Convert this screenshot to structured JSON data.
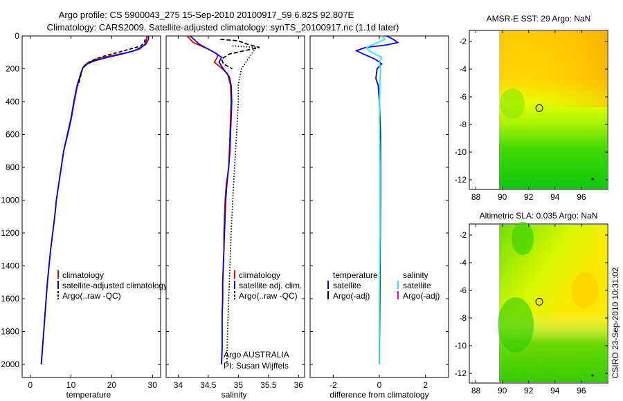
{
  "header": {
    "title_line1": "Argo profile: CS 5900043_275 15-Sep-2010 20100917_59 6.82S 92.807E",
    "title_line2": "Climatology: CARS2009. Satellite-adjusted climatology: synTS_20100917.nc (1.1d later)"
  },
  "side_stamp": "CSIRO 23-Sep-2010 10:31:02",
  "colors": {
    "climatology": "#e00000",
    "satellite": "#0000e0",
    "argo": "#000000",
    "sat_salinity": "#30e8f0",
    "argo_adj_salinity": "#e000e0",
    "map_yellow": "#ffff00",
    "map_green": "#00cc00",
    "map_orange": "#ffa000"
  },
  "chart_data": [
    {
      "id": "temperature",
      "type": "line",
      "xlabel": "temperature",
      "ylabel": "",
      "xlim": [
        -2,
        32
      ],
      "ylim": [
        2080,
        0
      ],
      "xticks": [
        0,
        10,
        20,
        30
      ],
      "yticks": [
        0,
        200,
        400,
        600,
        800,
        1000,
        1200,
        1400,
        1600,
        1800,
        2000
      ],
      "series": [
        {
          "name": "climatology",
          "color_key": "climatology",
          "dash": "",
          "points": [
            [
              28.6,
              0
            ],
            [
              28.6,
              10
            ],
            [
              28.5,
              20
            ],
            [
              28.4,
              40
            ],
            [
              27.8,
              60
            ],
            [
              26.8,
              80
            ],
            [
              24,
              100
            ],
            [
              20,
              120
            ],
            [
              16.5,
              140
            ],
            [
              14.3,
              160
            ],
            [
              13.3,
              180
            ],
            [
              12.8,
              200
            ],
            [
              12.2,
              250
            ],
            [
              11.6,
              300
            ],
            [
              10.8,
              400
            ],
            [
              10.1,
              500
            ],
            [
              9.2,
              600
            ],
            [
              8.2,
              700
            ],
            [
              7.6,
              800
            ],
            [
              7.0,
              900
            ],
            [
              6.4,
              1000
            ],
            [
              6.0,
              1100
            ],
            [
              5.5,
              1200
            ],
            [
              5.0,
              1300
            ],
            [
              4.6,
              1400
            ],
            [
              4.2,
              1500
            ],
            [
              3.9,
              1600
            ],
            [
              3.6,
              1700
            ],
            [
              3.3,
              1800
            ],
            [
              3.0,
              1900
            ],
            [
              2.7,
              2000
            ]
          ]
        },
        {
          "name": "satellite-adjusted climatology",
          "color_key": "satellite",
          "dash": "",
          "points": [
            [
              29.0,
              0
            ],
            [
              29.0,
              20
            ],
            [
              28.4,
              50
            ],
            [
              27.2,
              70
            ],
            [
              25.5,
              90
            ],
            [
              22.5,
              110
            ],
            [
              19,
              130
            ],
            [
              16,
              150
            ],
            [
              14,
              170
            ],
            [
              13,
              190
            ],
            [
              12.5,
              220
            ],
            [
              12,
              260
            ],
            [
              11.5,
              300
            ],
            [
              10.7,
              400
            ],
            [
              10.0,
              500
            ],
            [
              9.1,
              600
            ],
            [
              8.2,
              700
            ],
            [
              7.6,
              800
            ],
            [
              7.0,
              900
            ],
            [
              6.4,
              1000
            ],
            [
              6.0,
              1100
            ],
            [
              5.5,
              1200
            ],
            [
              5.0,
              1300
            ],
            [
              4.6,
              1400
            ],
            [
              4.2,
              1500
            ],
            [
              3.9,
              1600
            ],
            [
              3.6,
              1700
            ],
            [
              3.3,
              1800
            ],
            [
              3.0,
              1900
            ],
            [
              2.7,
              2000
            ]
          ]
        },
        {
          "name": "Argo(..raw -QC)",
          "color_key": "argo",
          "dash": "5,3",
          "points": [
            [
              28.2,
              20
            ],
            [
              28.0,
              40
            ],
            [
              27.2,
              60
            ],
            [
              24.5,
              80
            ],
            [
              21.5,
              100
            ],
            [
              18.5,
              120
            ],
            [
              16,
              140
            ],
            [
              14.5,
              160
            ],
            [
              13.5,
              180
            ],
            [
              12.8,
              200
            ],
            [
              12.3,
              250
            ],
            [
              11.8,
              300
            ]
          ]
        }
      ],
      "legend": [
        "climatology",
        "satellite-adjusted climatology",
        "Argo(..raw -QC)"
      ]
    },
    {
      "id": "salinity",
      "type": "line",
      "xlabel": "salinity",
      "xlim": [
        33.8,
        36.1
      ],
      "ylim": [
        2080,
        0
      ],
      "xticks": [
        34,
        34.5,
        35,
        35.5,
        36
      ],
      "series": [
        {
          "name": "climatology",
          "color_key": "climatology",
          "dash": "",
          "points": [
            [
              34.15,
              0
            ],
            [
              34.25,
              40
            ],
            [
              34.5,
              80
            ],
            [
              34.65,
              110
            ],
            [
              34.65,
              130
            ],
            [
              34.6,
              160
            ],
            [
              34.7,
              190
            ],
            [
              34.82,
              230
            ],
            [
              34.87,
              300
            ],
            [
              34.88,
              400
            ],
            [
              34.87,
              500
            ],
            [
              34.86,
              600
            ],
            [
              34.85,
              700
            ],
            [
              34.84,
              800
            ],
            [
              34.8,
              900
            ],
            [
              34.78,
              1000
            ],
            [
              34.77,
              1100
            ],
            [
              34.76,
              1200
            ],
            [
              34.76,
              1300
            ],
            [
              34.75,
              1400
            ],
            [
              34.74,
              1500
            ],
            [
              34.74,
              1600
            ],
            [
              34.73,
              1700
            ],
            [
              34.73,
              1800
            ],
            [
              34.73,
              1900
            ],
            [
              34.72,
              2000
            ]
          ]
        },
        {
          "name": "satellite adj. clim.",
          "color_key": "satellite",
          "dash": "",
          "points": [
            [
              34.2,
              0
            ],
            [
              34.35,
              50
            ],
            [
              34.6,
              100
            ],
            [
              34.72,
              130
            ],
            [
              34.68,
              160
            ],
            [
              34.75,
              200
            ],
            [
              34.85,
              250
            ],
            [
              34.88,
              300
            ],
            [
              34.89,
              400
            ],
            [
              34.88,
              500
            ],
            [
              34.87,
              600
            ],
            [
              34.86,
              700
            ],
            [
              34.84,
              800
            ],
            [
              34.81,
              900
            ],
            [
              34.79,
              1000
            ],
            [
              34.78,
              1100
            ],
            [
              34.77,
              1200
            ],
            [
              34.76,
              1300
            ],
            [
              34.75,
              1400
            ],
            [
              34.74,
              1500
            ],
            [
              34.74,
              1600
            ],
            [
              34.73,
              1700
            ],
            [
              34.73,
              1800
            ],
            [
              34.73,
              1900
            ],
            [
              34.72,
              2000
            ]
          ]
        },
        {
          "name": "Argo raw",
          "color_key": "argo",
          "dash": "6,3",
          "points": [
            [
              34.7,
              20
            ],
            [
              35.0,
              30
            ],
            [
              35.15,
              50
            ],
            [
              35.35,
              70
            ],
            [
              35.1,
              90
            ],
            [
              34.85,
              110
            ],
            [
              34.72,
              140
            ],
            [
              34.75,
              170
            ],
            [
              34.9,
              200
            ]
          ]
        },
        {
          "name": "Argo dotted",
          "color_key": "argo",
          "dash": "1.5,2.5",
          "points": [
            [
              34.9,
              60
            ],
            [
              35.3,
              70
            ],
            [
              35.2,
              120
            ],
            [
              35.05,
              200
            ],
            [
              35.0,
              300
            ],
            [
              35.0,
              400
            ],
            [
              34.97,
              600
            ],
            [
              34.92,
              900
            ],
            [
              34.88,
              1200
            ],
            [
              34.85,
              1500
            ],
            [
              34.82,
              1800
            ],
            [
              34.81,
              2000
            ]
          ]
        }
      ],
      "legend": [
        "climatology",
        "satellite adj. clim.",
        "Argo(..raw -QC)"
      ],
      "annotation": [
        "Argo AUSTRALIA",
        "PI: Susan Wijffels"
      ]
    },
    {
      "id": "difference",
      "type": "line",
      "xlabel": "difference from climatology",
      "xlim": [
        -3,
        3
      ],
      "ylim": [
        2080,
        0
      ],
      "xticks": [
        -2,
        0,
        2
      ],
      "series": [
        {
          "name": "temperature satellite",
          "color_key": "satellite",
          "dash": "",
          "points": [
            [
              0.3,
              0
            ],
            [
              0.6,
              20
            ],
            [
              0.8,
              40
            ],
            [
              0.3,
              55
            ],
            [
              -0.6,
              70
            ],
            [
              -1.0,
              90
            ],
            [
              -0.7,
              110
            ],
            [
              -0.2,
              140
            ],
            [
              0.1,
              170
            ],
            [
              -0.1,
              200
            ],
            [
              -0.15,
              260
            ],
            [
              -0.05,
              300
            ],
            [
              0.0,
              400
            ],
            [
              0.05,
              600
            ],
            [
              0.05,
              800
            ],
            [
              0.05,
              1000
            ],
            [
              0.03,
              1500
            ],
            [
              0.0,
              2000
            ]
          ]
        },
        {
          "name": "salinity satellite",
          "color_key": "sat_salinity",
          "dash": "",
          "points": [
            [
              0.1,
              0
            ],
            [
              0.25,
              20
            ],
            [
              0.0,
              35
            ],
            [
              -0.25,
              50
            ],
            [
              -0.55,
              70
            ],
            [
              -0.45,
              90
            ],
            [
              -0.2,
              110
            ],
            [
              0.1,
              130
            ],
            [
              0.0,
              160
            ],
            [
              0.05,
              200
            ],
            [
              0.02,
              300
            ],
            [
              0.0,
              500
            ],
            [
              0.03,
              800
            ],
            [
              0.03,
              1200
            ],
            [
              0.0,
              1600
            ],
            [
              0.0,
              2000
            ]
          ]
        }
      ],
      "legend": [
        "temperature",
        "satellite",
        "Argo(-adj)",
        "salinity",
        "satellite",
        "Argo(-adj)"
      ]
    },
    {
      "id": "sst_map",
      "type": "heatmap",
      "title": "AMSR-E SST: 29 Argo: NaN",
      "xticks": [
        88,
        90,
        92,
        94,
        96
      ],
      "yticks": [
        -2,
        -4,
        -6,
        -8,
        -10,
        -12
      ],
      "xlim": [
        87.5,
        98
      ],
      "ylim": [
        -12.7,
        -1.2
      ],
      "marker": {
        "lon": 92.807,
        "lat": -6.82
      }
    },
    {
      "id": "sla_map",
      "type": "heatmap",
      "title": "Altimetric SLA: 0.035 Argo: NaN",
      "xticks": [
        88,
        90,
        92,
        94,
        96
      ],
      "yticks": [
        -2,
        -4,
        -6,
        -8,
        -10,
        -12
      ],
      "xlim": [
        87.5,
        98
      ],
      "ylim": [
        -12.7,
        -1.2
      ],
      "marker": {
        "lon": 92.807,
        "lat": -6.82
      }
    }
  ]
}
